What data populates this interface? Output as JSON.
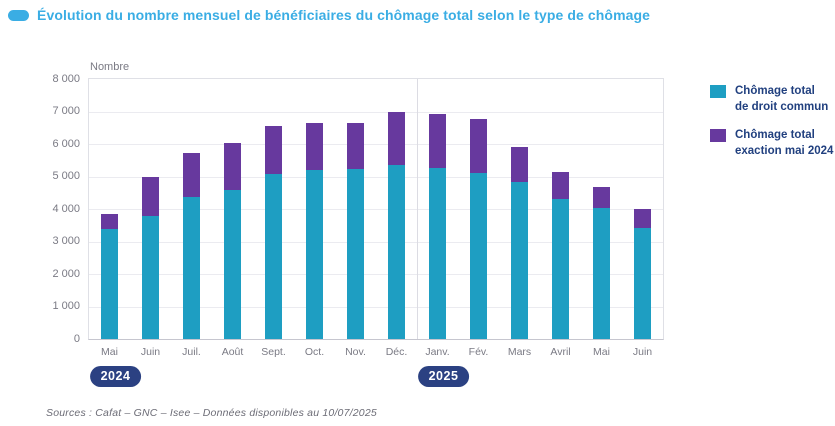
{
  "title": "Évolution du nombre mensuel de bénéficiaires du chômage total selon le type de chômage",
  "colors": {
    "title_blue": "#3aade4",
    "teal": "#1e9ec2",
    "purple": "#67399e",
    "navy": "#2b4182",
    "navy_text": "#21407f",
    "axis_text": "#7a7a84"
  },
  "legend": {
    "items": [
      {
        "line1": "Chômage total",
        "line2": "de droit commun",
        "color": "#1e9ec2"
      },
      {
        "line1": "Chômage total",
        "line2": "exaction mai 2024",
        "color": "#67399e"
      }
    ]
  },
  "footer": "Sources : Cafat – GNC – Isee – Données disponibles au 10/07/2025",
  "chart_data": {
    "type": "bar",
    "stacked": true,
    "title": "Évolution du nombre mensuel de bénéficiaires du chômage total selon le type de chômage",
    "ylabel": "Nombre",
    "xlabel": "",
    "ylim": [
      0,
      8000
    ],
    "ytick_step": 1000,
    "yticks": [
      "0",
      "1 000",
      "2 000",
      "3 000",
      "4 000",
      "5 000",
      "6 000",
      "7 000",
      "8 000"
    ],
    "grid": true,
    "legend_position": "right",
    "categories": [
      "Mai",
      "Juin",
      "Juil.",
      "Août",
      "Sept.",
      "Oct.",
      "Nov.",
      "Déc.",
      "Janv.",
      "Fév.",
      "Mars",
      "Avril",
      "Mai",
      "Juin"
    ],
    "year_groups": [
      {
        "label": "2024",
        "start_index": 0,
        "count": 8
      },
      {
        "label": "2025",
        "start_index": 8,
        "count": 6
      }
    ],
    "series": [
      {
        "name": "Chômage total de droit commun",
        "color": "#1e9ec2",
        "values": [
          3400,
          3800,
          4380,
          4600,
          5080,
          5200,
          5220,
          5350,
          5260,
          5110,
          4840,
          4320,
          4020,
          3430
        ]
      },
      {
        "name": "Chômage total exaction mai 2024",
        "color": "#67399e",
        "values": [
          450,
          1200,
          1350,
          1430,
          1470,
          1450,
          1440,
          1650,
          1680,
          1650,
          1060,
          830,
          650,
          580
        ]
      }
    ]
  }
}
